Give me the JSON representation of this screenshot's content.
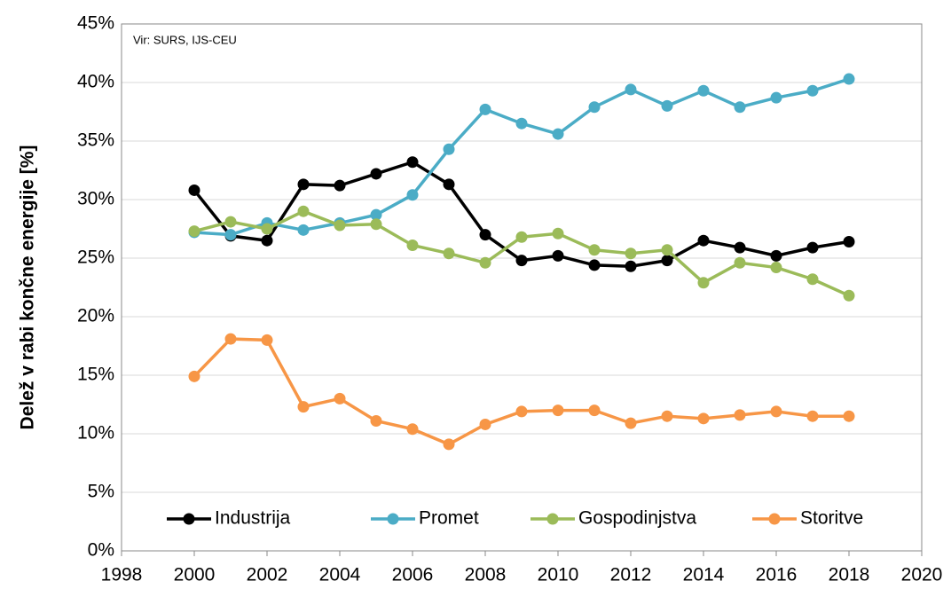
{
  "chart_data": {
    "type": "line",
    "y_label": "Delež v rabi končne energije [%]",
    "annotation": "Vir: SURS, IJS-CEU",
    "x": [
      2000,
      2001,
      2002,
      2003,
      2004,
      2005,
      2006,
      2007,
      2008,
      2009,
      2010,
      2011,
      2012,
      2013,
      2014,
      2015,
      2016,
      2017,
      2018
    ],
    "series": [
      {
        "name": "Industrija",
        "color": "#000000",
        "values": [
          30.8,
          26.9,
          26.5,
          31.3,
          31.2,
          32.2,
          33.2,
          31.3,
          27.0,
          24.8,
          25.2,
          24.4,
          24.3,
          24.8,
          26.5,
          25.9,
          25.2,
          25.9,
          26.4
        ]
      },
      {
        "name": "Promet",
        "color": "#4bacc6",
        "values": [
          27.2,
          27.0,
          28.0,
          27.4,
          28.0,
          28.7,
          30.4,
          34.3,
          37.7,
          36.5,
          35.6,
          37.9,
          39.4,
          38.0,
          39.3,
          37.9,
          38.7,
          39.3,
          40.3
        ]
      },
      {
        "name": "Gospodinjstva",
        "color": "#9bbb59",
        "values": [
          27.3,
          28.1,
          27.5,
          29.0,
          27.8,
          27.9,
          26.1,
          25.4,
          24.6,
          26.8,
          27.1,
          25.7,
          25.4,
          25.7,
          22.9,
          24.6,
          24.2,
          23.2,
          21.8
        ]
      },
      {
        "name": "Storitve",
        "color": "#f79646",
        "values": [
          14.9,
          18.1,
          18.0,
          12.3,
          13.0,
          11.1,
          10.4,
          9.1,
          10.8,
          11.9,
          12.0,
          12.0,
          10.9,
          11.5,
          11.3,
          11.6,
          11.9,
          11.5,
          11.5
        ]
      }
    ],
    "xlim": [
      1998,
      2020
    ],
    "xticks": [
      1998,
      2000,
      2002,
      2004,
      2006,
      2008,
      2010,
      2012,
      2014,
      2016,
      2018,
      2020
    ],
    "ylim": [
      0,
      45
    ],
    "yticks": [
      {
        "value": 0,
        "label": "0%"
      },
      {
        "value": 5,
        "label": "5%"
      },
      {
        "value": 10,
        "label": "10%"
      },
      {
        "value": 15,
        "label": "15%"
      },
      {
        "value": 20,
        "label": "20%"
      },
      {
        "value": 25,
        "label": "25%"
      },
      {
        "value": 30,
        "label": "30%"
      },
      {
        "value": 35,
        "label": "35%"
      },
      {
        "value": 40,
        "label": "40%"
      },
      {
        "value": 45,
        "label": "45%"
      }
    ],
    "grid": true,
    "legend": "bottom"
  }
}
